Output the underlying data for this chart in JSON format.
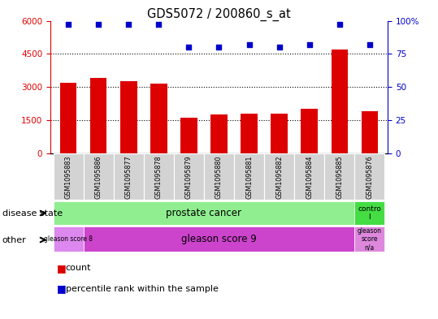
{
  "title": "GDS5072 / 200860_s_at",
  "samples": [
    "GSM1095883",
    "GSM1095886",
    "GSM1095877",
    "GSM1095878",
    "GSM1095879",
    "GSM1095880",
    "GSM1095881",
    "GSM1095882",
    "GSM1095884",
    "GSM1095885",
    "GSM1095876"
  ],
  "counts": [
    3200,
    3400,
    3250,
    3150,
    1600,
    1750,
    1800,
    1800,
    2000,
    4700,
    1900
  ],
  "percentile_ranks": [
    97,
    97,
    97,
    97,
    80,
    80,
    82,
    80,
    82,
    97,
    82
  ],
  "ylim_left": [
    0,
    6000
  ],
  "ylim_right": [
    0,
    100
  ],
  "yticks_left": [
    0,
    1500,
    3000,
    4500,
    6000
  ],
  "yticks_right": [
    0,
    25,
    50,
    75,
    100
  ],
  "bar_color": "#dd0000",
  "dot_color": "#0000cc",
  "bar_width": 0.55,
  "disease_state_colors": {
    "prostate_cancer": "#90EE90",
    "control": "#44dd44"
  },
  "other_colors": {
    "gleason8": "#dd88ee",
    "gleason9": "#cc44cc",
    "gleasonNA": "#dd88dd"
  },
  "label_bg": "#d3d3d3",
  "background_color": "#ffffff"
}
